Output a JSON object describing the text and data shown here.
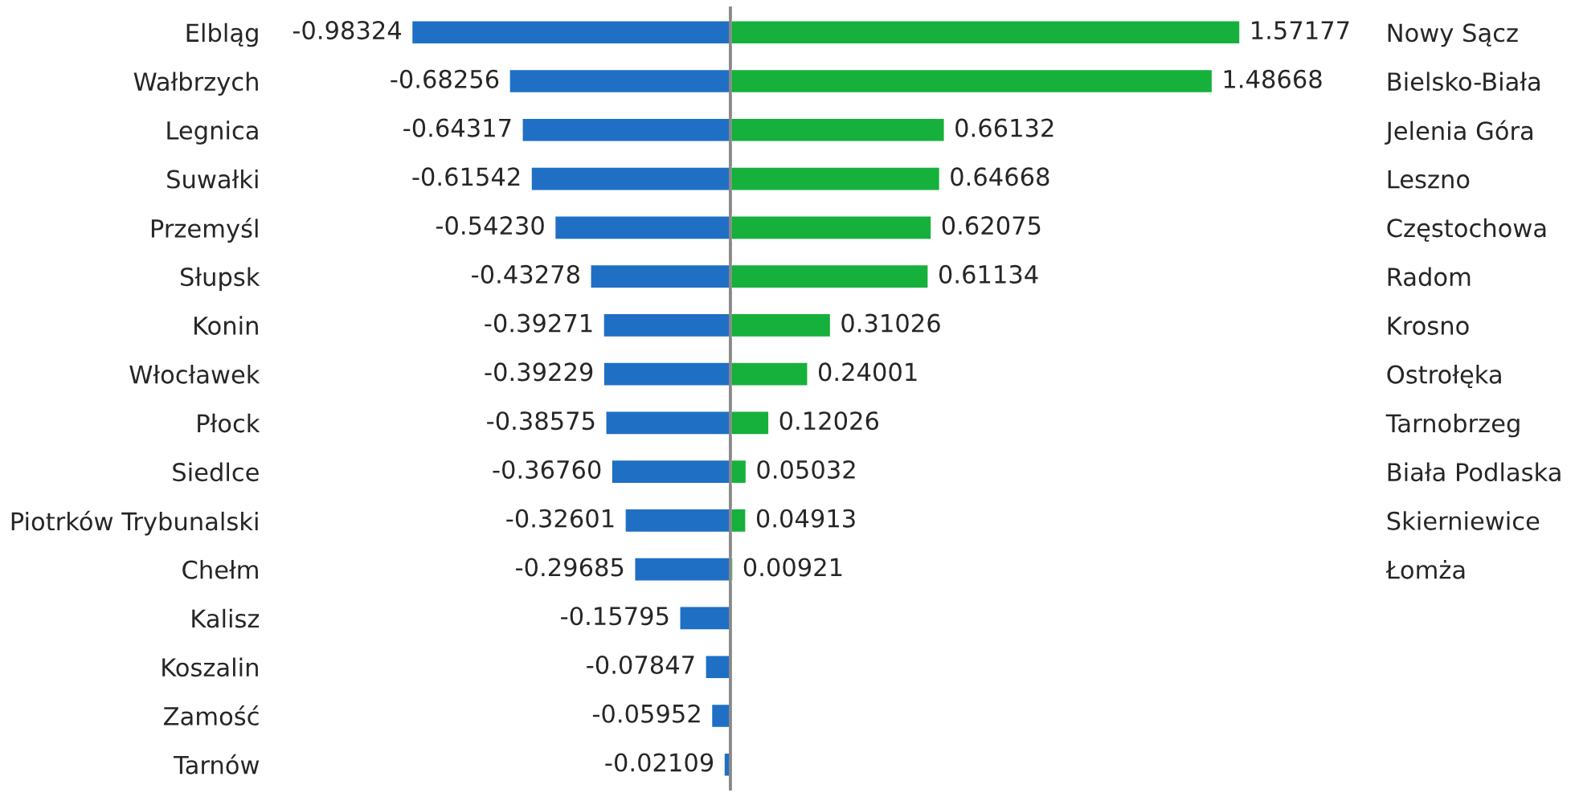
{
  "chart_data": [
    {
      "type": "bar",
      "orientation": "horizontal",
      "tick_labels": "y",
      "categories": [
        "Elbląg",
        "Wałbrzych",
        "Legnica",
        "Suwałki",
        "Przemyśl",
        "Słupsk",
        "Konin",
        "Włocławek",
        "Płock",
        "Siedlce",
        "Piotrków Trybunalski",
        "Chełm",
        "Kalisz",
        "Koszalin",
        "Zamość",
        "Tarnów"
      ],
      "series": [
        {
          "color": "#1f6fc5",
          "values": [
            -0.98324,
            -0.68256,
            -0.64317,
            -0.61542,
            -0.5423,
            -0.43278,
            -0.39271,
            -0.39229,
            -0.38575,
            -0.3676,
            -0.32601,
            -0.29685,
            -0.15795,
            -0.07847,
            -0.05952,
            -0.02109
          ],
          "value_labels": [
            "-0.98324",
            "-0.68256",
            "-0.64317",
            "-0.61542",
            "-0.54230",
            "-0.43278",
            "-0.39271",
            "-0.39229",
            "-0.38575",
            "-0.36760",
            "-0.32601",
            "-0.29685",
            "-0.15795",
            "-0.07847",
            "-0.05952",
            "-0.02109"
          ]
        }
      ]
    },
    {
      "type": "bar",
      "orientation": "horizontal",
      "tick_labels": "y",
      "categories": [
        "Nowy Sącz",
        "Bielsko-Biała",
        "Jelenia Góra",
        "Leszno",
        "Częstochowa",
        "Radom",
        "Krosno",
        "Ostrołęka",
        "Tarnobrzeg",
        "Biała Podlaska",
        "Skierniewice",
        "Łomża",
        null,
        null,
        null,
        null
      ],
      "series": [
        {
          "color": "#16b03c",
          "values": [
            1.57177,
            1.48668,
            0.66132,
            0.64668,
            0.62075,
            0.61134,
            0.31026,
            0.24001,
            0.12026,
            0.05032,
            0.04913,
            0.00921,
            null,
            null,
            null,
            null
          ],
          "value_labels": [
            "1.57177",
            "1.48668",
            "0.66132",
            "0.64668",
            "0.62075",
            "0.61134",
            "0.31026",
            "0.24001",
            "0.12026",
            "0.05032",
            "0.04913",
            "0.00921",
            null,
            null,
            null,
            null
          ]
        }
      ]
    }
  ]
}
